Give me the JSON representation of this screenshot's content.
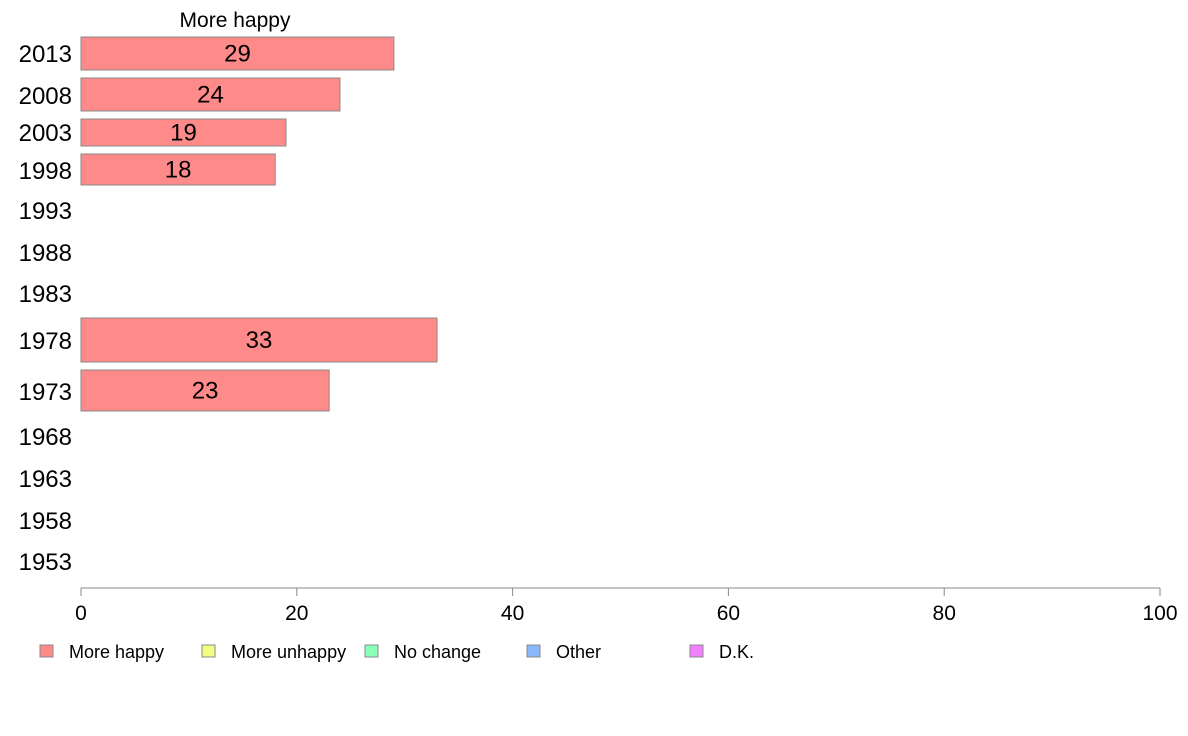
{
  "chart_data": {
    "type": "bar",
    "orientation": "horizontal",
    "title": "More happy",
    "categories": [
      "2013",
      "2008",
      "2003",
      "1998",
      "1993",
      "1988",
      "1983",
      "1978",
      "1973",
      "1968",
      "1963",
      "1958",
      "1953"
    ],
    "series": [
      {
        "name": "More happy",
        "color": "#ff8a8a",
        "values": [
          29,
          24,
          19,
          18,
          null,
          null,
          null,
          33,
          23,
          null,
          null,
          null,
          null
        ]
      }
    ],
    "xlim": [
      0,
      100
    ],
    "xticks": [
      0,
      20,
      40,
      60,
      80,
      100
    ],
    "grid": false,
    "legend": {
      "placement": "bottom",
      "entries": [
        {
          "label": "More happy",
          "color": "#ff8a8a"
        },
        {
          "label": "More unhappy",
          "color": "#f0ff80"
        },
        {
          "label": "No change",
          "color": "#8affb8"
        },
        {
          "label": "Other",
          "color": "#8ab8ff"
        },
        {
          "label": "D.K.",
          "color": "#f080ff"
        }
      ]
    }
  }
}
